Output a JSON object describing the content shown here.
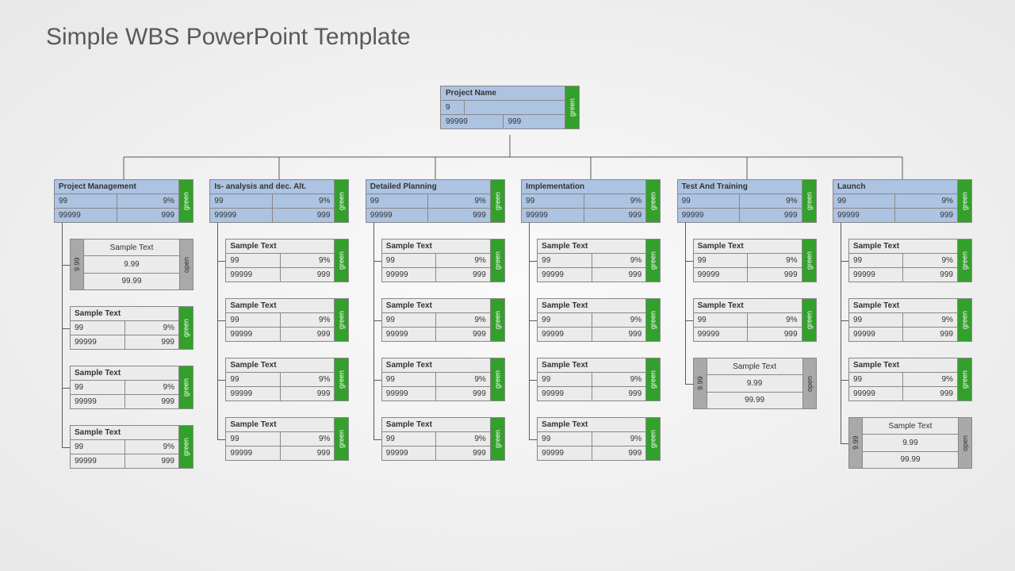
{
  "title": "Simple WBS PowerPoint Template",
  "colors": {
    "header_blue": "#adc3e2",
    "status_green": "#33a02c",
    "status_gray": "#a9a9a9",
    "child_bg": "#ebebeb",
    "border": "#888888",
    "connector": "#5a5a5a",
    "text": "#333333"
  },
  "root": {
    "name": "Project Name",
    "v1": "9",
    "v2": "",
    "v3": "99999",
    "v4": "999",
    "status": "green"
  },
  "categories": [
    {
      "name": "Project Management",
      "a": "99",
      "b": "9%",
      "c": "99999",
      "d": "999",
      "status": "green"
    },
    {
      "name": "Is- analysis and dec. Alt.",
      "a": "99",
      "b": "9%",
      "c": "99999",
      "d": "999",
      "status": "green"
    },
    {
      "name": "Detailed Planning",
      "a": "99",
      "b": "9%",
      "c": "99999",
      "d": "999",
      "status": "green"
    },
    {
      "name": "Implementation",
      "a": "99",
      "b": "9%",
      "c": "99999",
      "d": "999",
      "status": "green"
    },
    {
      "name": "Test And Training",
      "a": "99",
      "b": "9%",
      "c": "99999",
      "d": "999",
      "status": "green"
    },
    {
      "name": "Launch",
      "a": "99",
      "b": "9%",
      "c": "99999",
      "d": "999",
      "status": "green"
    }
  ],
  "children": [
    [
      {
        "type": "open",
        "title": "Sample Text",
        "pre": "9.99",
        "mid": "9.99",
        "bot": "99.99",
        "status": "open"
      },
      {
        "type": "std",
        "title": "Sample Text",
        "a": "99",
        "b": "9%",
        "c": "99999",
        "d": "999",
        "status": "green"
      },
      {
        "type": "std",
        "title": "Sample Text",
        "a": "99",
        "b": "9%",
        "c": "99999",
        "d": "999",
        "status": "green"
      },
      {
        "type": "std",
        "title": "Sample Text",
        "a": "99",
        "b": "9%",
        "c": "99999",
        "d": "999",
        "status": "green"
      }
    ],
    [
      {
        "type": "std",
        "title": "Sample Text",
        "a": "99",
        "b": "9%",
        "c": "99999",
        "d": "999",
        "status": "green"
      },
      {
        "type": "std",
        "title": "Sample Text",
        "a": "99",
        "b": "9%",
        "c": "99999",
        "d": "999",
        "status": "green"
      },
      {
        "type": "std",
        "title": "Sample Text",
        "a": "99",
        "b": "9%",
        "c": "99999",
        "d": "999",
        "status": "green"
      },
      {
        "type": "std",
        "title": "Sample Text",
        "a": "99",
        "b": "9%",
        "c": "99999",
        "d": "999",
        "status": "green"
      }
    ],
    [
      {
        "type": "std",
        "title": "Sample Text",
        "a": "99",
        "b": "9%",
        "c": "99999",
        "d": "999",
        "status": "green"
      },
      {
        "type": "std",
        "title": "Sample Text",
        "a": "99",
        "b": "9%",
        "c": "99999",
        "d": "999",
        "status": "green"
      },
      {
        "type": "std",
        "title": "Sample Text",
        "a": "99",
        "b": "9%",
        "c": "99999",
        "d": "999",
        "status": "green"
      },
      {
        "type": "std",
        "title": "Sample Text",
        "a": "99",
        "b": "9%",
        "c": "99999",
        "d": "999",
        "status": "green"
      }
    ],
    [
      {
        "type": "std",
        "title": "Sample Text",
        "a": "99",
        "b": "9%",
        "c": "99999",
        "d": "999",
        "status": "green"
      },
      {
        "type": "std",
        "title": "Sample Text",
        "a": "99",
        "b": "9%",
        "c": "99999",
        "d": "999",
        "status": "green"
      },
      {
        "type": "std",
        "title": "Sample Text",
        "a": "99",
        "b": "9%",
        "c": "99999",
        "d": "999",
        "status": "green"
      },
      {
        "type": "std",
        "title": "Sample Text",
        "a": "99",
        "b": "9%",
        "c": "99999",
        "d": "999",
        "status": "green"
      }
    ],
    [
      {
        "type": "std",
        "title": "Sample Text",
        "a": "99",
        "b": "9%",
        "c": "99999",
        "d": "999",
        "status": "green"
      },
      {
        "type": "std",
        "title": "Sample Text",
        "a": "99",
        "b": "9%",
        "c": "99999",
        "d": "999",
        "status": "green"
      },
      {
        "type": "open",
        "title": "Sample Text",
        "pre": "9.99",
        "mid": "9.99",
        "bot": "99.99",
        "status": "open"
      }
    ],
    [
      {
        "type": "std",
        "title": "Sample Text",
        "a": "99",
        "b": "9%",
        "c": "99999",
        "d": "999",
        "status": "green"
      },
      {
        "type": "std",
        "title": "Sample Text",
        "a": "99",
        "b": "9%",
        "c": "99999",
        "d": "999",
        "status": "green"
      },
      {
        "type": "std",
        "title": "Sample Text",
        "a": "99",
        "b": "9%",
        "c": "99999",
        "d": "999",
        "status": "green"
      },
      {
        "type": "open",
        "title": "Sample Text",
        "pre": "9.99",
        "mid": "9.99",
        "bot": "99.99",
        "status": "open"
      }
    ]
  ]
}
